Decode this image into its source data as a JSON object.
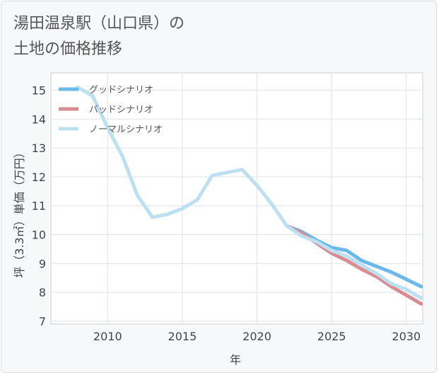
{
  "title_lines": [
    "湯田温泉駅（山口県）の",
    "土地の価格推移"
  ],
  "chart_data": {
    "type": "line",
    "xlabel": "年",
    "ylabel": "坪（3.3㎡）単価（万円）",
    "xlim": [
      2006.2,
      2031.1
    ],
    "ylim": [
      6.9,
      15.6
    ],
    "xticks": [
      2010,
      2015,
      2020,
      2025,
      2030
    ],
    "yticks": [
      7,
      8,
      9,
      10,
      11,
      12,
      13,
      14,
      15
    ],
    "grid": true,
    "legend_position": "top-left",
    "series": [
      {
        "name": "グッドシナリオ",
        "color": "#6ab8ec",
        "x": [
          2022,
          2023,
          2024,
          2025,
          2026,
          2027,
          2028,
          2029,
          2030,
          2031
        ],
        "y": [
          10.3,
          10.1,
          9.8,
          9.55,
          9.45,
          9.1,
          8.9,
          8.7,
          8.45,
          8.2
        ]
      },
      {
        "name": "バッドシナリオ",
        "color": "#d98b90",
        "x": [
          2022,
          2023,
          2024,
          2025,
          2026,
          2027,
          2028,
          2029,
          2030,
          2031
        ],
        "y": [
          10.3,
          10.05,
          9.7,
          9.35,
          9.1,
          8.8,
          8.55,
          8.2,
          7.9,
          7.6
        ]
      },
      {
        "name": "ノーマルシナリオ",
        "color": "#bde0f0",
        "x": [
          2008,
          2009,
          2010,
          2011,
          2012,
          2013,
          2014,
          2015,
          2016,
          2017,
          2018,
          2019,
          2020,
          2021,
          2022,
          2023,
          2024,
          2025,
          2026,
          2027,
          2028,
          2029,
          2030,
          2031
        ],
        "y": [
          15.1,
          14.8,
          13.7,
          12.7,
          11.35,
          10.6,
          10.7,
          10.9,
          11.2,
          12.05,
          12.15,
          12.25,
          11.7,
          11.05,
          10.3,
          9.95,
          9.75,
          9.45,
          9.25,
          8.95,
          8.65,
          8.3,
          8.1,
          7.8
        ]
      }
    ]
  }
}
